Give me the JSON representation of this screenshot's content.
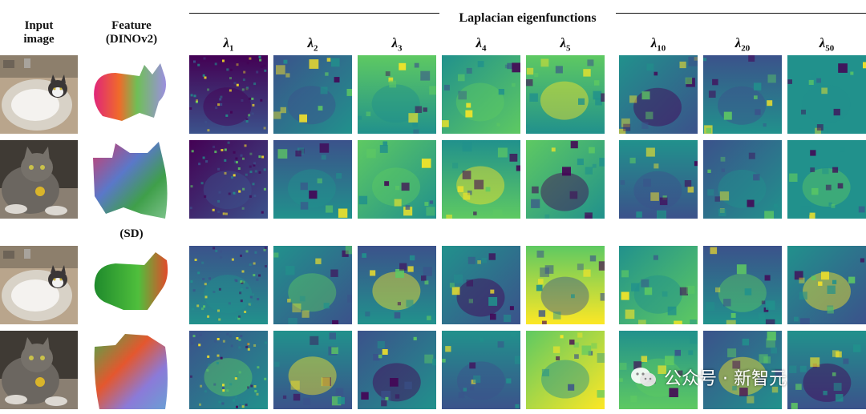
{
  "headers": {
    "input_image": "Input\nimage",
    "feature": "Feature\n(DINOv2)",
    "sd_label": "(SD)",
    "laplacian": "Laplacian eigenfunctions"
  },
  "lambda_columns": [
    {
      "symbol": "λ",
      "sub": "1"
    },
    {
      "symbol": "λ",
      "sub": "2"
    },
    {
      "symbol": "λ",
      "sub": "3"
    },
    {
      "symbol": "λ",
      "sub": "4"
    },
    {
      "symbol": "λ",
      "sub": "5"
    },
    {
      "symbol": "λ",
      "sub": "10"
    },
    {
      "symbol": "λ",
      "sub": "20"
    },
    {
      "symbol": "λ",
      "sub": "50"
    }
  ],
  "rows": [
    {
      "image": "cat-in-sink-photo",
      "feature": "dinov2-feature-map"
    },
    {
      "image": "cat-with-tag-photo",
      "feature": "dinov2-feature-map"
    },
    {
      "image": "cat-in-sink-photo",
      "feature": "sd-feature-map"
    },
    {
      "image": "cat-with-tag-photo",
      "feature": "sd-feature-map"
    }
  ],
  "colormap": [
    "#440154",
    "#3b528b",
    "#21918c",
    "#5ec962",
    "#fde725"
  ],
  "watermark": {
    "text": "公众号 · 新智元",
    "icon": "wechat-icon"
  }
}
